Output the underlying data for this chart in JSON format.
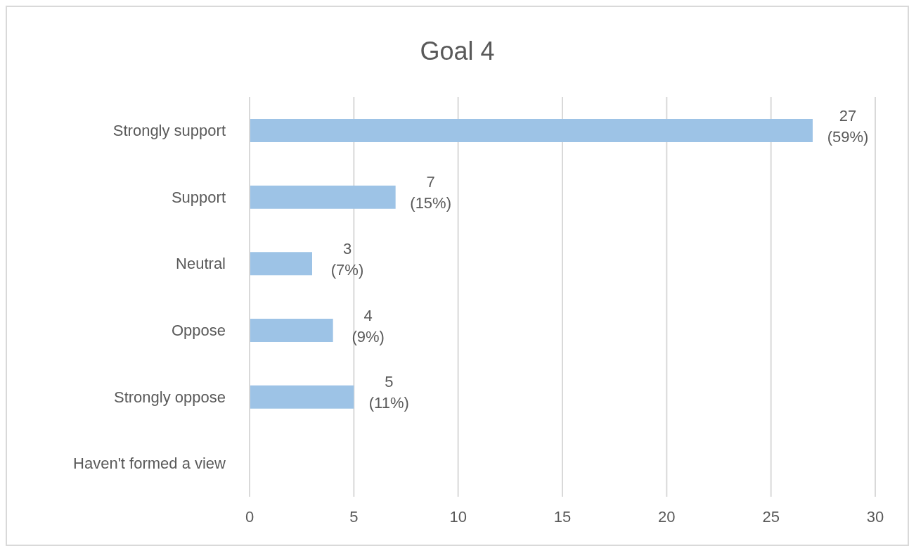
{
  "chart_data": {
    "type": "bar",
    "orientation": "horizontal",
    "title": "Goal 4",
    "categories": [
      "Strongly support",
      "Support",
      "Neutral",
      "Oppose",
      "Strongly oppose",
      "Haven't formed a view"
    ],
    "values": [
      27,
      7,
      3,
      4,
      5,
      0
    ],
    "value_labels": [
      "27 (59%)",
      "7 (15%)",
      "3 (7%)",
      "4 (9%)",
      "5 (11%)",
      null
    ],
    "color": "#9dc3e6",
    "xlim": [
      0,
      30
    ],
    "xticks": [
      0,
      5,
      10,
      15,
      20,
      25,
      30
    ],
    "grid": "x"
  }
}
